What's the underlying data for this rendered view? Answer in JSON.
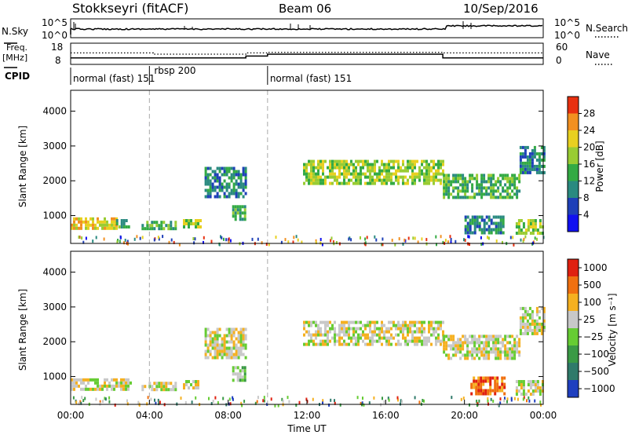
{
  "header": {
    "title": "Stokkseyri (fitACF)",
    "beam": "Beam 06",
    "date": "10/Sep/2016"
  },
  "noise_panel": {
    "left_label": "N.Sky",
    "right_label": "N.Search",
    "left_ticks": [
      "10^5",
      "10^0"
    ],
    "right_ticks": [
      "10^5",
      "10^0"
    ]
  },
  "freq_panel": {
    "left_label_1": "Freq.",
    "left_label_2": "[MHz]",
    "right_label": "Nave",
    "left_ticks": [
      "18",
      "8"
    ],
    "right_ticks": [
      "60",
      "0"
    ],
    "nave_steps": [
      {
        "from": 0.0,
        "to": 4.2,
        "value": 34
      },
      {
        "from": 4.2,
        "to": 8.9,
        "value": 30
      },
      {
        "from": 8.9,
        "to": 10.0,
        "value": 34
      },
      {
        "from": 10.0,
        "to": 18.9,
        "value": 36
      },
      {
        "from": 18.9,
        "to": 24.0,
        "value": 34
      }
    ],
    "freq_steps": [
      {
        "from": 0.0,
        "to": 8.9,
        "value": 11.0
      },
      {
        "from": 8.9,
        "to": 10.0,
        "value": 12.0
      },
      {
        "from": 10.0,
        "to": 18.9,
        "value": 13.0
      },
      {
        "from": 18.9,
        "to": 24.0,
        "value": 11.0
      }
    ]
  },
  "cpid": {
    "label": "CPID",
    "segments": [
      {
        "start": 0.0,
        "end": 4.0,
        "text": "normal (fast) 151"
      },
      {
        "start": 4.0,
        "end": 10.0,
        "text": "rbsp 200"
      },
      {
        "start": 10.0,
        "end": 24.0,
        "text": "normal (fast) 151"
      }
    ]
  },
  "axis": {
    "xlabel": "Time UT",
    "ylabel": "Slant Range [km]",
    "xticks": [
      "00:00",
      "04:00",
      "08:00",
      "12:00",
      "16:00",
      "20:00",
      "00:00"
    ],
    "yticks": [
      "1000",
      "2000",
      "3000",
      "4000"
    ]
  },
  "chart_data": [
    {
      "type": "heatmap",
      "name": "power",
      "xlim": [
        0,
        24
      ],
      "ylim": [
        200,
        4600
      ],
      "colorbar": {
        "label": "Power [dB]",
        "ticks": [
          "4",
          "8",
          "12",
          "16",
          "20",
          "24",
          "28"
        ],
        "colors": [
          "#1010f0",
          "#1e40b8",
          "#2a8a80",
          "#33aa44",
          "#99cc33",
          "#e8d020",
          "#f29020",
          "#e83010"
        ]
      },
      "regions": [
        {
          "t0": 0.0,
          "t1": 2.3,
          "r0": 650,
          "r1": 950,
          "level": 5
        },
        {
          "t0": 2.3,
          "t1": 3.0,
          "r0": 650,
          "r1": 900,
          "level": 3
        },
        {
          "t0": 3.6,
          "t1": 5.3,
          "r0": 600,
          "r1": 850,
          "level": 3
        },
        {
          "t0": 5.7,
          "t1": 6.6,
          "r0": 650,
          "r1": 900,
          "level": 4
        },
        {
          "t0": 6.8,
          "t1": 8.9,
          "r0": 1500,
          "r1": 2400,
          "level": 2
        },
        {
          "t0": 8.2,
          "t1": 8.9,
          "r0": 900,
          "r1": 1300,
          "level": 3
        },
        {
          "t0": 11.8,
          "t1": 18.9,
          "r0": 1900,
          "r1": 2600,
          "level": 4
        },
        {
          "t0": 18.9,
          "t1": 22.8,
          "r0": 1500,
          "r1": 2200,
          "level": 3
        },
        {
          "t0": 22.8,
          "t1": 24.0,
          "r0": 2200,
          "r1": 3000,
          "level": 2
        },
        {
          "t0": 20.0,
          "t1": 22.0,
          "r0": 500,
          "r1": 1000,
          "level": 2
        },
        {
          "t0": 22.6,
          "t1": 24.0,
          "r0": 500,
          "r1": 900,
          "level": 4
        }
      ]
    },
    {
      "type": "heatmap",
      "name": "velocity",
      "xlim": [
        0,
        24
      ],
      "ylim": [
        200,
        4600
      ],
      "colorbar": {
        "label": "Velocity [m s⁻¹]",
        "ticks": [
          "1000",
          "500",
          "100",
          "25",
          "−25",
          "−100",
          "−500",
          "−1000"
        ],
        "colors": [
          "#1f3fbf",
          "#2f7a6a",
          "#3a9a45",
          "#66cc33",
          "#c8c8c8",
          "#f5b020",
          "#f07010",
          "#e02010"
        ]
      },
      "regions": [
        {
          "t0": 0.0,
          "t1": 3.0,
          "r0": 650,
          "r1": 950,
          "level": 4
        },
        {
          "t0": 3.6,
          "t1": 5.3,
          "r0": 600,
          "r1": 850,
          "level": 4
        },
        {
          "t0": 5.7,
          "t1": 6.6,
          "r0": 650,
          "r1": 900,
          "level": 4
        },
        {
          "t0": 6.8,
          "t1": 8.9,
          "r0": 1500,
          "r1": 2400,
          "level": 4
        },
        {
          "t0": 8.2,
          "t1": 8.9,
          "r0": 900,
          "r1": 1300,
          "level": 3
        },
        {
          "t0": 11.8,
          "t1": 18.9,
          "r0": 1900,
          "r1": 2600,
          "level": 4
        },
        {
          "t0": 18.9,
          "t1": 22.8,
          "r0": 1500,
          "r1": 2200,
          "level": 4
        },
        {
          "t0": 22.8,
          "t1": 24.0,
          "r0": 2200,
          "r1": 3000,
          "level": 4
        },
        {
          "t0": 20.3,
          "t1": 22.0,
          "r0": 500,
          "r1": 1000,
          "level": 6
        },
        {
          "t0": 22.6,
          "t1": 24.0,
          "r0": 500,
          "r1": 900,
          "level": 4
        }
      ]
    }
  ]
}
